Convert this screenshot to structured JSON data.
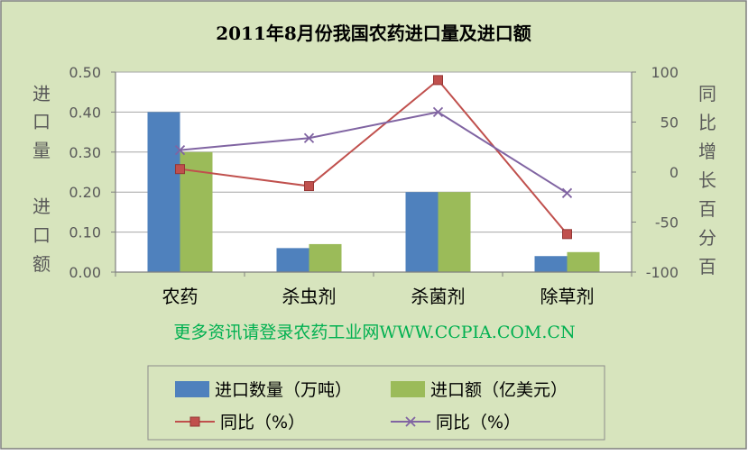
{
  "chart_data": {
    "type": "bar",
    "title": "2011年8月份我国农药进口量及进口额",
    "categories": [
      "农药",
      "杀虫剂",
      "杀菌剂",
      "除草剂"
    ],
    "series": [
      {
        "name": "进口数量（万吨）",
        "type": "bar",
        "axis": "left",
        "color": "#4f81bd",
        "values": [
          0.4,
          0.06,
          0.2,
          0.04
        ]
      },
      {
        "name": "进口额（亿美元）",
        "type": "bar",
        "axis": "left",
        "color": "#9bbb59",
        "values": [
          0.3,
          0.07,
          0.2,
          0.05
        ]
      },
      {
        "name": "同比（%）",
        "type": "line",
        "axis": "right",
        "color": "#c0504d",
        "marker": "square",
        "values": [
          3,
          -14,
          92,
          -62
        ]
      },
      {
        "name": "同比（%）",
        "type": "line",
        "axis": "right",
        "color": "#8064a2",
        "marker": "x",
        "values": [
          22,
          34,
          60,
          -21
        ]
      }
    ],
    "left_axis": {
      "label": "进口量 进口额",
      "ylim": [
        0,
        0.5
      ],
      "ticks": [
        "0.00",
        "0.10",
        "0.20",
        "0.30",
        "0.40",
        "0.50"
      ]
    },
    "right_axis": {
      "label": "同比增长百分百",
      "ylim": [
        -100,
        100
      ],
      "ticks": [
        "-100",
        "-50",
        "0",
        "50",
        "100"
      ]
    },
    "grid": true,
    "legend": "bottom",
    "watermark": "更多资讯请登录农药工业网WWW.CCPIA.COM.CN",
    "colors": {
      "background": "#d7e4bd",
      "plot_background": "#ffffff",
      "grid": "#a6a6a6"
    }
  }
}
